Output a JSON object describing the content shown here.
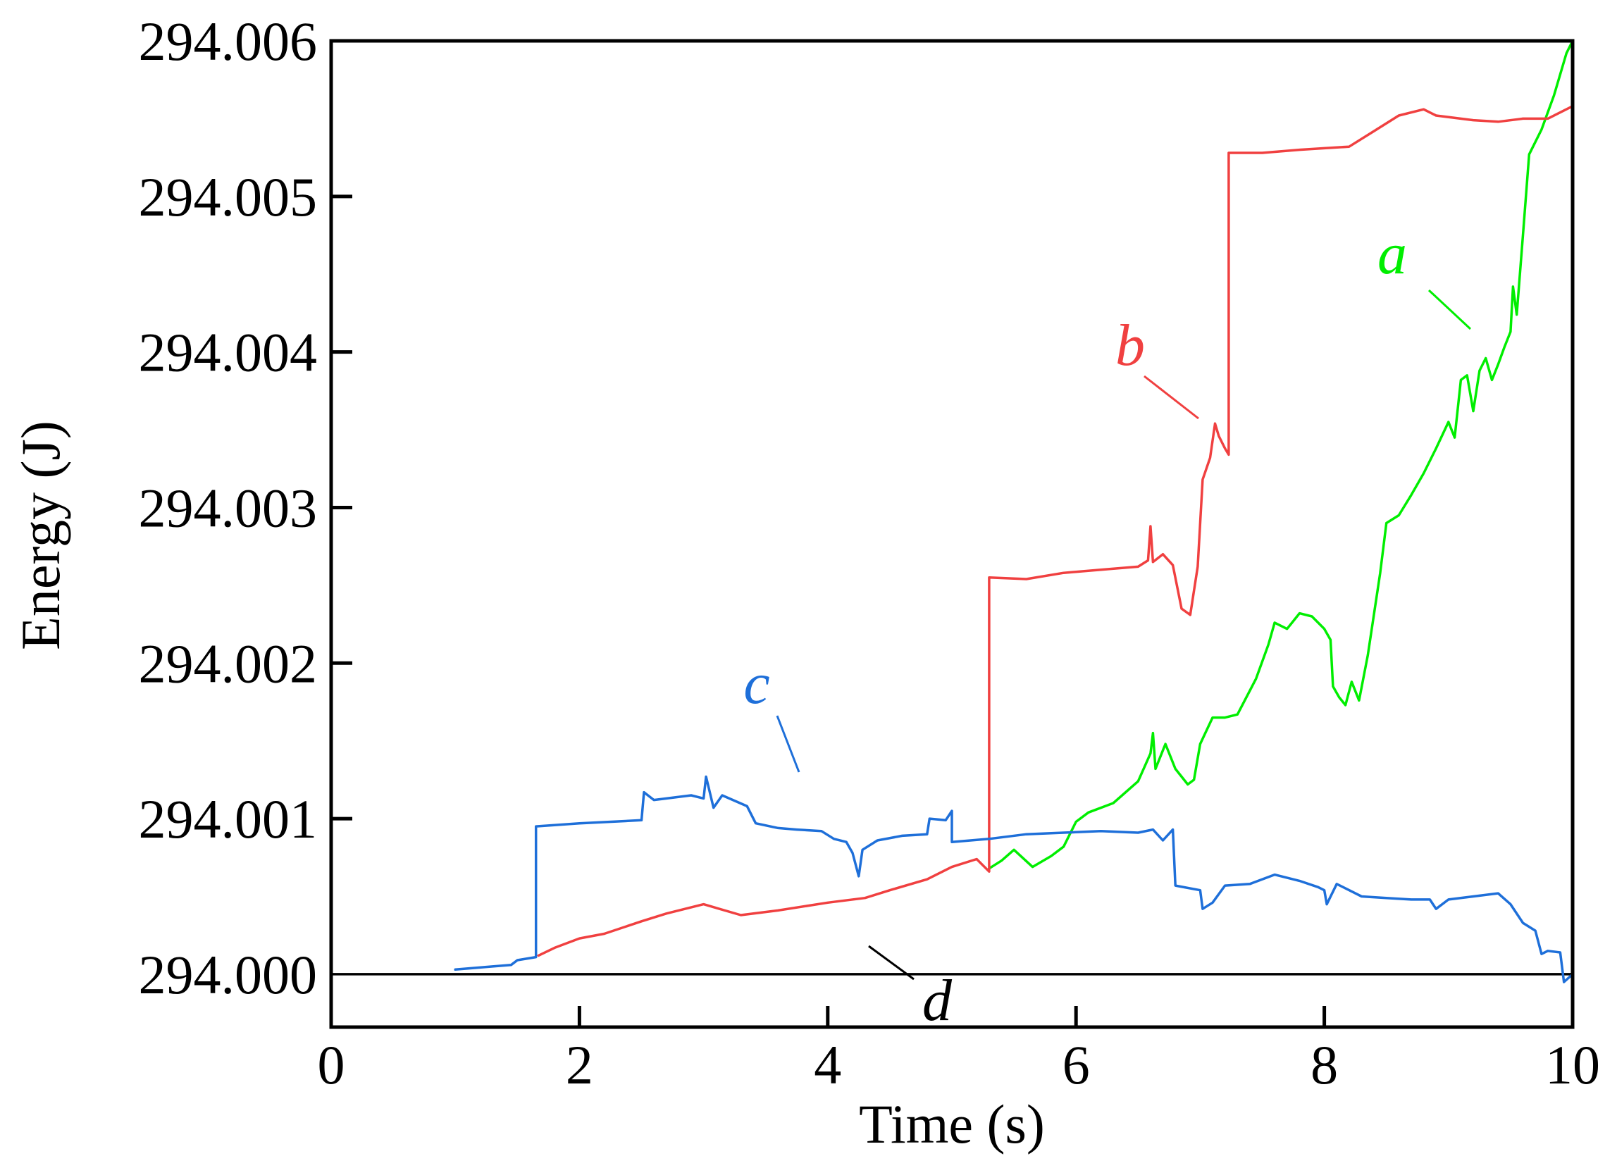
{
  "chart_data": {
    "type": "line",
    "title": "",
    "xlabel": "Time (s)",
    "ylabel": "Energy (J)",
    "xlim": [
      0,
      10
    ],
    "ylim": [
      293.99966,
      294.006
    ],
    "x_ticks": [
      0,
      2,
      4,
      6,
      8,
      10
    ],
    "x_tick_labels": [
      "0",
      "2",
      "4",
      "6",
      "8",
      "10"
    ],
    "y_ticks": [
      294.0,
      294.001,
      294.002,
      294.003,
      294.004,
      294.005,
      294.006
    ],
    "y_tick_labels": [
      "294.000",
      "294.001",
      "294.002",
      "294.003",
      "294.004",
      "294.005",
      "294.006"
    ],
    "grid": false,
    "colors": {
      "a": "#00ee00",
      "b": "#f04040",
      "c": "#1e6fd9",
      "d": "#000000"
    },
    "series": [
      {
        "name": "a",
        "points": [
          [
            5.3,
            294.00068
          ],
          [
            5.4,
            294.00073
          ],
          [
            5.5,
            294.0008
          ],
          [
            5.65,
            294.00069
          ],
          [
            5.8,
            294.00076
          ],
          [
            5.9,
            294.00082
          ],
          [
            6.0,
            294.00098
          ],
          [
            6.1,
            294.00104
          ],
          [
            6.3,
            294.0011
          ],
          [
            6.5,
            294.00124
          ],
          [
            6.6,
            294.00142
          ],
          [
            6.62,
            294.00155
          ],
          [
            6.64,
            294.00132
          ],
          [
            6.72,
            294.00148
          ],
          [
            6.8,
            294.00132
          ],
          [
            6.9,
            294.00122
          ],
          [
            6.95,
            294.00125
          ],
          [
            7.0,
            294.00148
          ],
          [
            7.1,
            294.00165
          ],
          [
            7.2,
            294.00165
          ],
          [
            7.3,
            294.00167
          ],
          [
            7.45,
            294.0019
          ],
          [
            7.55,
            294.00212
          ],
          [
            7.6,
            294.00226
          ],
          [
            7.65,
            294.00224
          ],
          [
            7.7,
            294.00222
          ],
          [
            7.8,
            294.00232
          ],
          [
            7.9,
            294.0023
          ],
          [
            8.0,
            294.00222
          ],
          [
            8.05,
            294.00215
          ],
          [
            8.07,
            294.00185
          ],
          [
            8.12,
            294.00178
          ],
          [
            8.17,
            294.00173
          ],
          [
            8.22,
            294.00188
          ],
          [
            8.28,
            294.00176
          ],
          [
            8.35,
            294.00205
          ],
          [
            8.45,
            294.00258
          ],
          [
            8.5,
            294.0029
          ],
          [
            8.6,
            294.00295
          ],
          [
            8.7,
            294.00308
          ],
          [
            8.8,
            294.00322
          ],
          [
            8.9,
            294.00338
          ],
          [
            9.0,
            294.00355
          ],
          [
            9.05,
            294.00345
          ],
          [
            9.1,
            294.00382
          ],
          [
            9.15,
            294.00385
          ],
          [
            9.2,
            294.00362
          ],
          [
            9.25,
            294.00388
          ],
          [
            9.3,
            294.00396
          ],
          [
            9.35,
            294.00382
          ],
          [
            9.4,
            294.00392
          ],
          [
            9.45,
            294.00403
          ],
          [
            9.5,
            294.00413
          ],
          [
            9.52,
            294.00442
          ],
          [
            9.55,
            294.00424
          ],
          [
            9.6,
            294.00475
          ],
          [
            9.65,
            294.00527
          ],
          [
            9.75,
            294.00543
          ],
          [
            9.85,
            294.00565
          ],
          [
            9.95,
            294.00592
          ],
          [
            10.0,
            294.006
          ]
        ]
      },
      {
        "name": "b",
        "points": [
          [
            1.67,
            294.00012
          ],
          [
            1.8,
            294.00017
          ],
          [
            2.0,
            294.00023
          ],
          [
            2.2,
            294.00026
          ],
          [
            2.5,
            294.00034
          ],
          [
            2.7,
            294.00039
          ],
          [
            3.0,
            294.00045
          ],
          [
            3.3,
            294.00038
          ],
          [
            3.6,
            294.00041
          ],
          [
            4.0,
            294.00046
          ],
          [
            4.3,
            294.00049
          ],
          [
            4.5,
            294.00054
          ],
          [
            4.8,
            294.00061
          ],
          [
            5.0,
            294.00069
          ],
          [
            5.2,
            294.00074
          ],
          [
            5.3,
            294.00066
          ],
          [
            5.3,
            294.00255
          ],
          [
            5.6,
            294.00254
          ],
          [
            5.9,
            294.00258
          ],
          [
            6.2,
            294.0026
          ],
          [
            6.5,
            294.00262
          ],
          [
            6.58,
            294.00266
          ],
          [
            6.6,
            294.00288
          ],
          [
            6.62,
            294.00265
          ],
          [
            6.7,
            294.0027
          ],
          [
            6.78,
            294.00263
          ],
          [
            6.85,
            294.00235
          ],
          [
            6.92,
            294.00231
          ],
          [
            6.98,
            294.00262
          ],
          [
            7.02,
            294.00318
          ],
          [
            7.08,
            294.00332
          ],
          [
            7.12,
            294.00354
          ],
          [
            7.15,
            294.00346
          ],
          [
            7.2,
            294.00338
          ],
          [
            7.23,
            294.00334
          ],
          [
            7.23,
            294.00528
          ],
          [
            7.5,
            294.00528
          ],
          [
            7.8,
            294.0053
          ],
          [
            8.0,
            294.00531
          ],
          [
            8.2,
            294.00532
          ],
          [
            8.4,
            294.00542
          ],
          [
            8.6,
            294.00552
          ],
          [
            8.8,
            294.00556
          ],
          [
            8.9,
            294.00552
          ],
          [
            9.2,
            294.00549
          ],
          [
            9.4,
            294.00548
          ],
          [
            9.6,
            294.0055
          ],
          [
            9.8,
            294.0055
          ],
          [
            10.0,
            294.00558
          ]
        ]
      },
      {
        "name": "c",
        "points": [
          [
            1.0,
            294.00003
          ],
          [
            1.3,
            294.00005
          ],
          [
            1.45,
            294.00006
          ],
          [
            1.5,
            294.00009
          ],
          [
            1.65,
            294.00011
          ],
          [
            1.65,
            294.00095
          ],
          [
            2.0,
            294.00097
          ],
          [
            2.5,
            294.00099
          ],
          [
            2.52,
            294.00117
          ],
          [
            2.6,
            294.00112
          ],
          [
            2.9,
            294.00115
          ],
          [
            3.0,
            294.00113
          ],
          [
            3.02,
            294.00127
          ],
          [
            3.08,
            294.00107
          ],
          [
            3.15,
            294.00115
          ],
          [
            3.35,
            294.00108
          ],
          [
            3.42,
            294.00097
          ],
          [
            3.6,
            294.00094
          ],
          [
            3.75,
            294.00093
          ],
          [
            3.95,
            294.00092
          ],
          [
            4.05,
            294.00087
          ],
          [
            4.15,
            294.00085
          ],
          [
            4.2,
            294.00078
          ],
          [
            4.25,
            294.00063
          ],
          [
            4.28,
            294.0008
          ],
          [
            4.4,
            294.00086
          ],
          [
            4.6,
            294.00089
          ],
          [
            4.8,
            294.0009
          ],
          [
            4.82,
            294.001
          ],
          [
            4.95,
            294.00099
          ],
          [
            5.0,
            294.00105
          ],
          [
            5.0,
            294.00085
          ],
          [
            5.3,
            294.00087
          ],
          [
            5.6,
            294.0009
          ],
          [
            5.9,
            294.00091
          ],
          [
            6.2,
            294.00092
          ],
          [
            6.5,
            294.00091
          ],
          [
            6.62,
            294.00093
          ],
          [
            6.7,
            294.00086
          ],
          [
            6.78,
            294.00093
          ],
          [
            6.8,
            294.00057
          ],
          [
            7.0,
            294.00054
          ],
          [
            7.02,
            294.00042
          ],
          [
            7.1,
            294.00046
          ],
          [
            7.2,
            294.00057
          ],
          [
            7.4,
            294.00058
          ],
          [
            7.6,
            294.00064
          ],
          [
            7.8,
            294.0006
          ],
          [
            7.95,
            294.00056
          ],
          [
            8.0,
            294.00054
          ],
          [
            8.02,
            294.00045
          ],
          [
            8.1,
            294.00058
          ],
          [
            8.3,
            294.0005
          ],
          [
            8.5,
            294.00049
          ],
          [
            8.7,
            294.00048
          ],
          [
            8.85,
            294.00048
          ],
          [
            8.9,
            294.00042
          ],
          [
            9.0,
            294.00048
          ],
          [
            9.2,
            294.0005
          ],
          [
            9.4,
            294.00052
          ],
          [
            9.5,
            294.00045
          ],
          [
            9.6,
            294.00033
          ],
          [
            9.7,
            294.00028
          ],
          [
            9.75,
            294.00013
          ],
          [
            9.8,
            294.00015
          ],
          [
            9.9,
            294.00014
          ],
          [
            9.93,
            293.99995
          ],
          [
            10.0,
            294.0
          ]
        ]
      },
      {
        "name": "d",
        "points": [
          [
            0.0,
            294.0
          ],
          [
            1.0,
            294.0
          ],
          [
            2.0,
            294.0
          ],
          [
            3.0,
            294.0
          ],
          [
            4.0,
            294.0
          ],
          [
            5.0,
            294.0
          ],
          [
            6.0,
            294.0
          ],
          [
            7.0,
            294.0
          ],
          [
            8.0,
            294.0
          ],
          [
            9.0,
            294.0
          ],
          [
            10.0,
            294.0
          ]
        ]
      }
    ],
    "annotations": [
      {
        "text": "a",
        "series": "a"
      },
      {
        "text": "b",
        "series": "b"
      },
      {
        "text": "c",
        "series": "c"
      },
      {
        "text": "d",
        "series": "d"
      }
    ]
  }
}
